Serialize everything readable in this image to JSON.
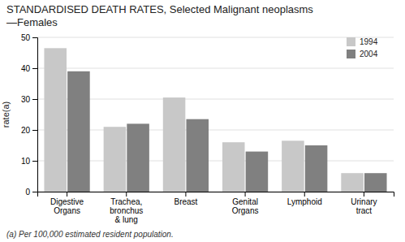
{
  "chart_data": {
    "type": "bar",
    "title": "STANDARDISED DEATH RATES, Selected Malignant neoplasms",
    "subtitle": "—Females",
    "ylabel": "rate(a)",
    "annotations": [
      "(a) Per 100,000 estimated resident population."
    ],
    "categories": [
      "Digestive\nOrgans",
      "Trachea,\nbronchus\n& lung",
      "Breast",
      "Genital\nOrgans",
      "Lymphoid",
      "Urinary\ntract"
    ],
    "series": [
      {
        "name": "1994",
        "color": "#c8c8c8",
        "values": [
          46.5,
          21.0,
          30.5,
          16.0,
          16.5,
          6.0
        ]
      },
      {
        "name": "2004",
        "color": "#808080",
        "values": [
          39.0,
          22.0,
          23.5,
          13.0,
          15.0,
          6.0
        ]
      }
    ],
    "ylim": [
      0,
      50
    ],
    "yticks": [
      0,
      10,
      20,
      30,
      40,
      50
    ],
    "grid": true,
    "legend": "upper right"
  }
}
